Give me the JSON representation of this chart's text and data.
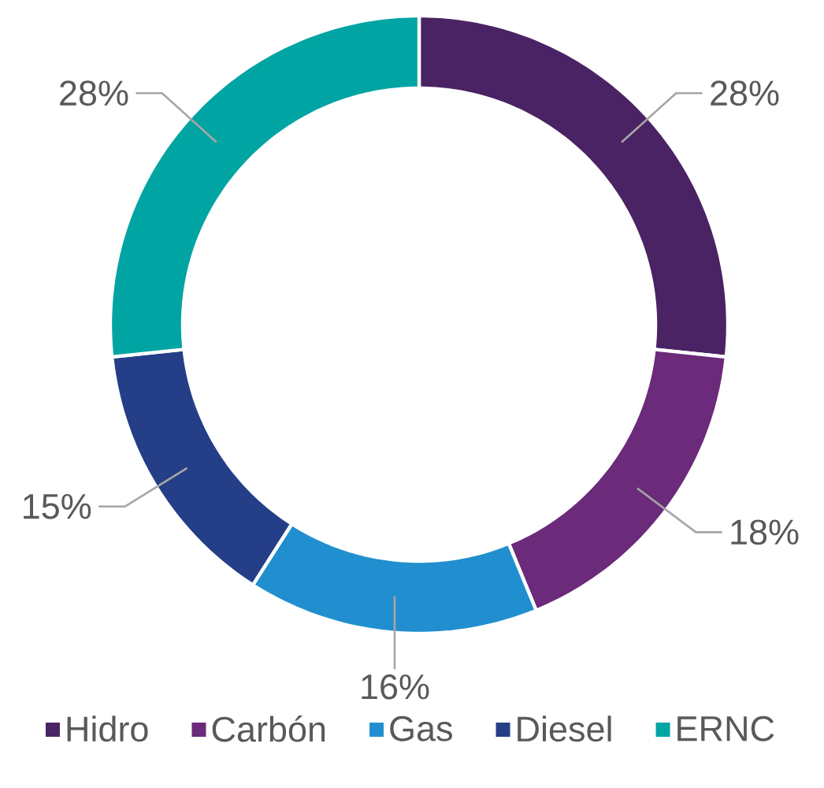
{
  "chart_data": {
    "type": "donut",
    "categories": [
      "Hidro",
      "Carbón",
      "Gas",
      "Diesel",
      "ERNC"
    ],
    "values": [
      28,
      18,
      16,
      15,
      28
    ],
    "colors": [
      "#4a2364",
      "#6b2a7a",
      "#218fcf",
      "#243e87",
      "#00a4a3"
    ],
    "value_labels": [
      "28%",
      "18%",
      "16%",
      "15%",
      "28%"
    ],
    "legend": "bottom"
  }
}
